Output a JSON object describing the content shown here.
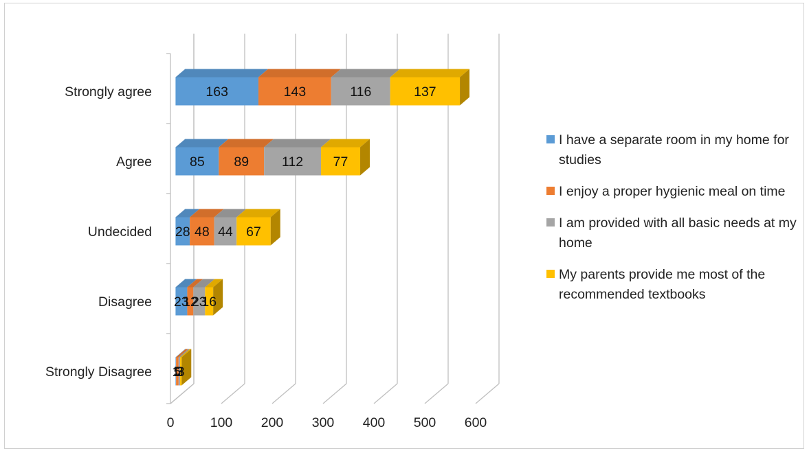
{
  "chart_data": {
    "type": "bar",
    "stacked": true,
    "orientation": "horizontal",
    "three_d": true,
    "categories": [
      "Strongly agree",
      "Agree",
      "Undecided",
      "Disagree",
      "Strongly Disagree"
    ],
    "series": [
      {
        "name": "I have a separate room in my home for studies",
        "color": "#5b9bd5",
        "values": [
          163,
          85,
          28,
          23,
          1
        ]
      },
      {
        "name": "I enjoy a proper hygienic meal on time",
        "color": "#ed7d31",
        "values": [
          143,
          89,
          48,
          12,
          5
        ]
      },
      {
        "name": "I am provided with all basic needs at my home",
        "color": "#a5a5a5",
        "values": [
          116,
          112,
          44,
          23,
          3
        ]
      },
      {
        "name": "My parents provide me most of the recommended textbooks",
        "color": "#ffc000",
        "values": [
          137,
          77,
          67,
          16,
          3
        ]
      }
    ],
    "data_labels": [
      [
        "163",
        "143",
        "116",
        "137"
      ],
      [
        "85",
        "89",
        "112",
        "77"
      ],
      [
        "28",
        "48",
        "44",
        "67"
      ],
      [
        "23",
        "12",
        "23",
        "16"
      ],
      [
        "1",
        "5",
        "3",
        "3"
      ]
    ],
    "xlim": [
      0,
      600
    ],
    "x_ticks": [
      "0",
      "100",
      "200",
      "300",
      "400",
      "500",
      "600"
    ],
    "xlabel": "",
    "ylabel": "",
    "grid": true,
    "legend_position": "right"
  }
}
